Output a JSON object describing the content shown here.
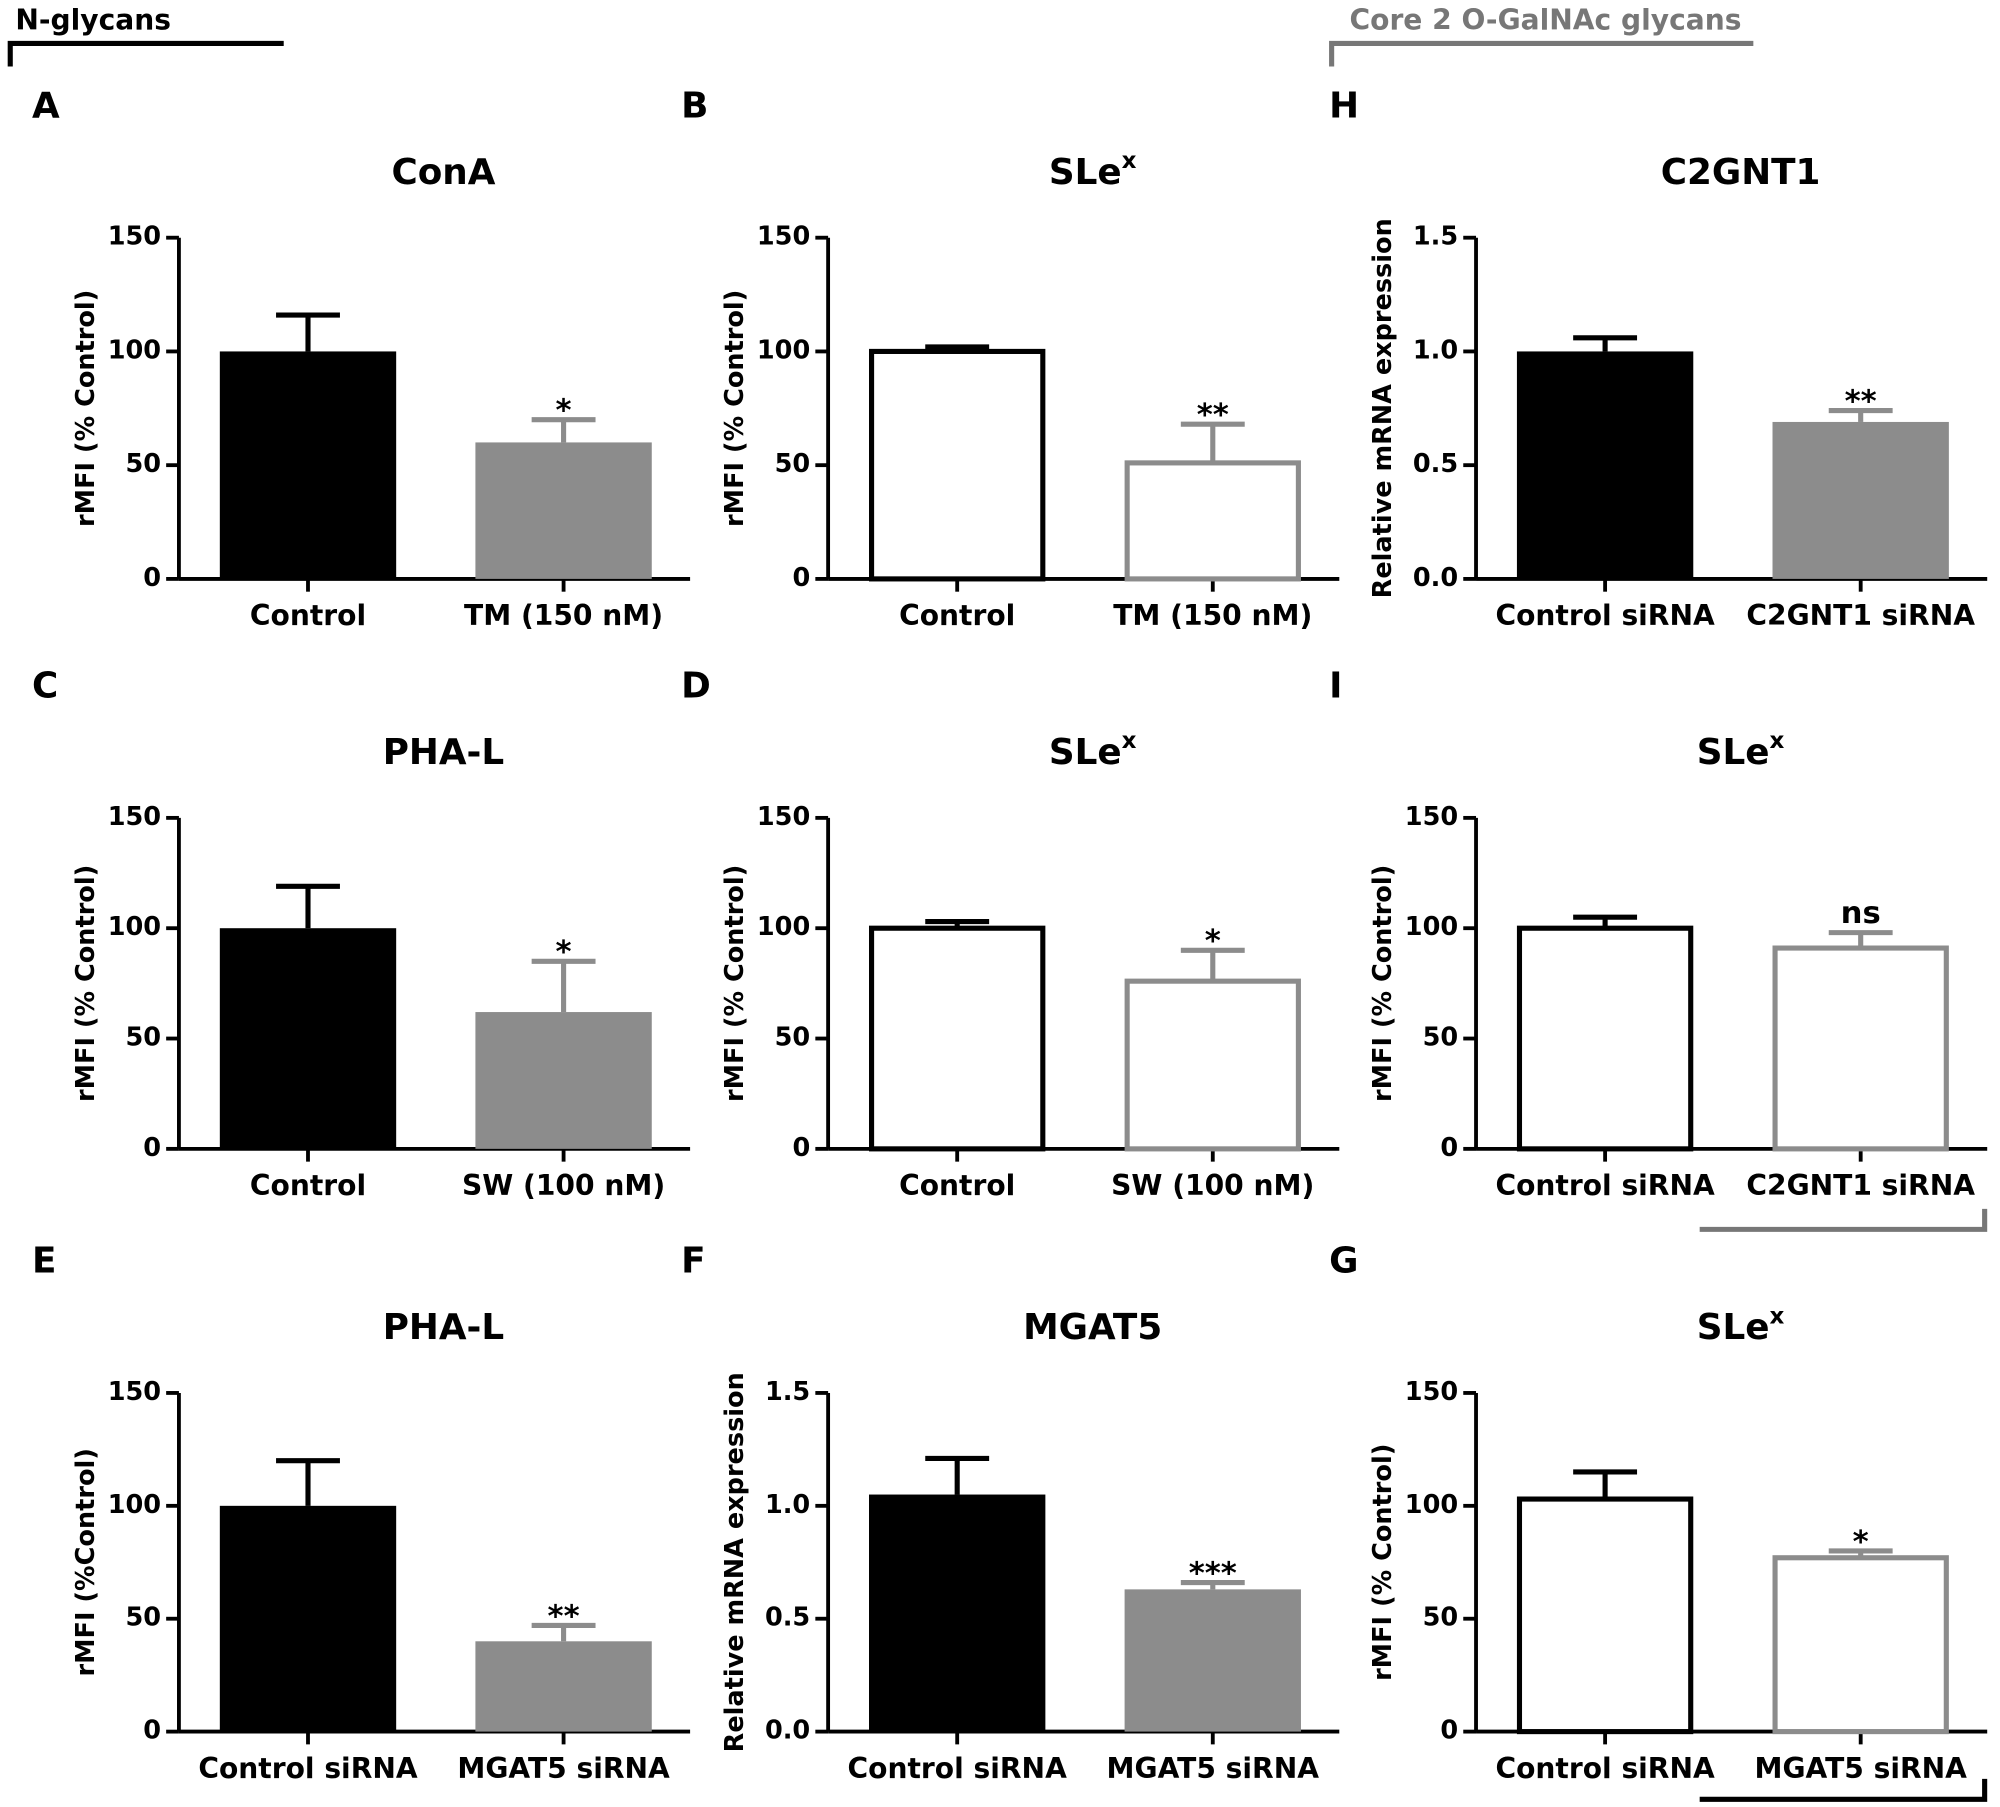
{
  "sections": {
    "left": "N-glycans",
    "right": "Core 2 O-GalNAc glycans"
  },
  "chart_data": [
    {
      "type": "bar",
      "panel": "A",
      "title": "ConA",
      "ylabel": "rMFI (% Control)",
      "categories": [
        "Control",
        "TM (150 nM)"
      ],
      "values": [
        100,
        60
      ],
      "errors": [
        16,
        10
      ],
      "significance": [
        null,
        "*"
      ],
      "colors": [
        "#000000",
        "#8c8c8c"
      ],
      "style": "filled",
      "ylim": [
        0,
        150
      ],
      "yticks": [
        0,
        50,
        100,
        150
      ]
    },
    {
      "type": "bar",
      "panel": "B",
      "title": "SLe",
      "title_sup": "x",
      "ylabel": "rMFI (% Control)",
      "categories": [
        "Control",
        "TM (150 nM)"
      ],
      "values": [
        100,
        51
      ],
      "errors": [
        2,
        17
      ],
      "significance": [
        null,
        "**"
      ],
      "colors": [
        "#000000",
        "#8c8c8c"
      ],
      "style": "outline",
      "ylim": [
        0,
        150
      ],
      "yticks": [
        0,
        50,
        100,
        150
      ]
    },
    {
      "type": "bar",
      "panel": "H",
      "title": "C2GNT1",
      "ylabel": "Relative mRNA expression",
      "categories": [
        "Control siRNA",
        "C2GNT1 siRNA"
      ],
      "values": [
        1.0,
        0.69
      ],
      "errors": [
        0.06,
        0.05
      ],
      "significance": [
        null,
        "**"
      ],
      "colors": [
        "#000000",
        "#8c8c8c"
      ],
      "style": "filled",
      "ylim": [
        0,
        1.5
      ],
      "yticks": [
        {
          "value": 0,
          "label": "0.0"
        },
        0.5,
        {
          "value": 1,
          "label": "1.0"
        },
        1.5
      ]
    },
    {
      "type": "bar",
      "panel": "C",
      "title": "PHA-L",
      "ylabel": "rMFI (% Control)",
      "categories": [
        "Control",
        "SW (100 nM)"
      ],
      "values": [
        100,
        62
      ],
      "errors": [
        19,
        23
      ],
      "significance": [
        null,
        "*"
      ],
      "colors": [
        "#000000",
        "#8c8c8c"
      ],
      "style": "filled",
      "ylim": [
        0,
        150
      ],
      "yticks": [
        0,
        50,
        100,
        150
      ]
    },
    {
      "type": "bar",
      "panel": "D",
      "title": "SLe",
      "title_sup": "x",
      "ylabel": "rMFI (% Control)",
      "categories": [
        "Control",
        "SW (100 nM)"
      ],
      "values": [
        100,
        76
      ],
      "errors": [
        3,
        14
      ],
      "significance": [
        null,
        "*"
      ],
      "colors": [
        "#000000",
        "#8c8c8c"
      ],
      "style": "outline",
      "ylim": [
        0,
        150
      ],
      "yticks": [
        0,
        50,
        100,
        150
      ]
    },
    {
      "type": "bar",
      "panel": "I",
      "title": "SLe",
      "title_sup": "x",
      "ylabel": "rMFI (% Control)",
      "categories": [
        "Control siRNA",
        "C2GNT1 siRNA"
      ],
      "values": [
        100,
        91
      ],
      "errors": [
        5,
        7
      ],
      "significance": [
        null,
        "ns"
      ],
      "colors": [
        "#000000",
        "#8c8c8c"
      ],
      "style": "outline",
      "ylim": [
        0,
        150
      ],
      "yticks": [
        0,
        50,
        100,
        150
      ]
    },
    {
      "type": "bar",
      "panel": "E",
      "title": "PHA-L",
      "ylabel": "rMFI (%Control)",
      "categories": [
        "Control siRNA",
        "MGAT5 siRNA"
      ],
      "values": [
        100,
        40
      ],
      "errors": [
        20,
        7
      ],
      "significance": [
        null,
        "**"
      ],
      "colors": [
        "#000000",
        "#8c8c8c"
      ],
      "style": "filled",
      "ylim": [
        0,
        150
      ],
      "yticks": [
        0,
        50,
        100,
        150
      ]
    },
    {
      "type": "bar",
      "panel": "F",
      "title": "MGAT5",
      "ylabel": "Relative mRNA expression",
      "categories": [
        "Control siRNA",
        "MGAT5 siRNA"
      ],
      "values": [
        1.05,
        0.63
      ],
      "errors": [
        0.16,
        0.03
      ],
      "significance": [
        null,
        "***"
      ],
      "colors": [
        "#000000",
        "#8c8c8c"
      ],
      "style": "filled",
      "ylim": [
        0,
        1.5
      ],
      "yticks": [
        {
          "value": 0,
          "label": "0.0"
        },
        0.5,
        {
          "value": 1,
          "label": "1.0"
        },
        1.5
      ]
    },
    {
      "type": "bar",
      "panel": "G",
      "title": "SLe",
      "title_sup": "x",
      "ylabel": "rMFI (% Control)",
      "categories": [
        "Control siRNA",
        "MGAT5 siRNA"
      ],
      "values": [
        103,
        77
      ],
      "errors": [
        12,
        3
      ],
      "significance": [
        null,
        "*"
      ],
      "colors": [
        "#000000",
        "#8c8c8c"
      ],
      "style": "outline",
      "ylim": [
        0,
        150
      ],
      "yticks": [
        0,
        50,
        100,
        150
      ]
    }
  ]
}
